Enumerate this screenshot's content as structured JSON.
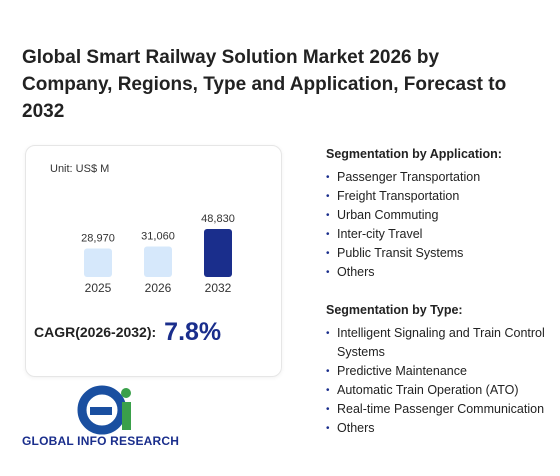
{
  "title": "Global Smart Railway Solution Market 2026 by Company, Regions, Type and Application, Forecast to 2032",
  "chart_data": {
    "type": "bar",
    "subtitle": "Unit: US$ M",
    "categories": [
      "2025",
      "2026",
      "2032"
    ],
    "values": [
      28970,
      31060,
      48830
    ],
    "value_labels": [
      "28,970",
      "31,060",
      "48,830"
    ],
    "colors": [
      "#d6e8fb",
      "#d6e8fb",
      "#1a2e8c"
    ]
  },
  "cagr": {
    "label": "CAGR(2026-2032):",
    "value": "7.8%"
  },
  "segments": [
    {
      "heading": "Segmentation by Application:",
      "items": [
        "Passenger Transportation",
        "Freight Transportation",
        "Urban Commuting",
        "Inter-city Travel",
        "Public Transit Systems",
        "Others"
      ]
    },
    {
      "heading": "Segmentation by Type:",
      "items": [
        "Intelligent Signaling and Train Control Systems",
        "Predictive Maintenance",
        "Automatic Train Operation (ATO)",
        "Real-time Passenger Communication",
        "Others"
      ]
    }
  ],
  "logo_text": "GLOBAL INFO RESEARCH"
}
